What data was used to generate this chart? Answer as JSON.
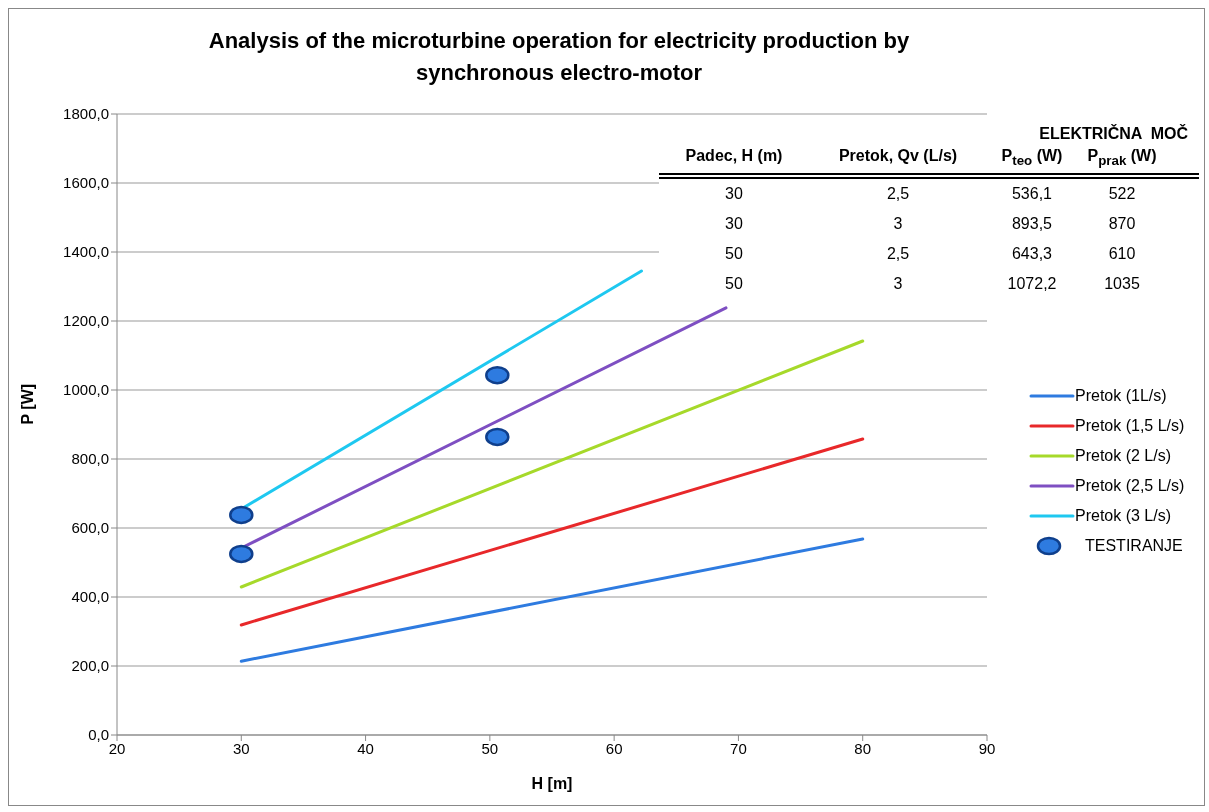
{
  "chart_data": {
    "type": "line",
    "title": "Analysis of the microturbine operation for electricity production by synchronous electro-motor",
    "xlabel": "H [m]",
    "ylabel": "P [W]",
    "xlim": [
      20,
      90
    ],
    "xticks": [
      20,
      30,
      40,
      50,
      60,
      70,
      80,
      90
    ],
    "ylim": [
      0,
      1800
    ],
    "yticks": [
      {
        "value": 0,
        "label": "0,0"
      },
      {
        "value": 200,
        "label": "200,0"
      },
      {
        "value": 400,
        "label": "400,0"
      },
      {
        "value": 600,
        "label": "600,0"
      },
      {
        "value": 800,
        "label": "800,0"
      },
      {
        "value": 1000,
        "label": "1000,0"
      },
      {
        "value": 1200,
        "label": "1200,0"
      },
      {
        "value": 1400,
        "label": "1400,0"
      },
      {
        "value": 1600,
        "label": "1600,0"
      },
      {
        "value": 1800,
        "label": "1800,0"
      }
    ],
    "grid": "y",
    "legend": "right",
    "marker": "none",
    "line_style": "solid",
    "series": [
      {
        "name": "Pretok (1L/s)",
        "type": "line",
        "color": "#2e7be0",
        "x": [
          30,
          80
        ],
        "values": [
          214,
          568
        ]
      },
      {
        "name": "Pretok (1,5 L/s)",
        "type": "line",
        "color": "#e8282a",
        "x": [
          30,
          80
        ],
        "values": [
          319,
          858
        ]
      },
      {
        "name": "Pretok (2 L/s)",
        "type": "line",
        "color": "#a6d92a",
        "x": [
          30,
          80
        ],
        "values": [
          429,
          1142
        ]
      },
      {
        "name": "Pretok (2,5 L/s)",
        "type": "line",
        "color": "#7e4fc2",
        "x": [
          30,
          69
        ],
        "values": [
          542,
          1238
        ]
      },
      {
        "name": "Pretok (3 L/s)",
        "type": "line",
        "color": "#1ec8f0",
        "x": [
          30,
          62.2
        ],
        "values": [
          655,
          1345
        ]
      },
      {
        "name": "TESTIRANJE",
        "type": "scatter",
        "marker": "circle",
        "color": "#2e7be0",
        "x": [
          30,
          30,
          50.6,
          50.6
        ],
        "values": [
          525,
          638,
          864,
          1043
        ]
      }
    ],
    "annotations": [
      "ELEKTRIČNA  MOČ",
      "Padec, H (m)",
      "Pretok, Qv (L/s)",
      "P$_{teo}$ (W)",
      "P$_{prak}$ (W)",
      "30",
      "2,5",
      "536,1",
      "522",
      "30",
      "3",
      "893,5",
      "870",
      "50",
      "2,5",
      "643,3",
      "610",
      "50",
      "3",
      "1072,2",
      "1035"
    ]
  }
}
